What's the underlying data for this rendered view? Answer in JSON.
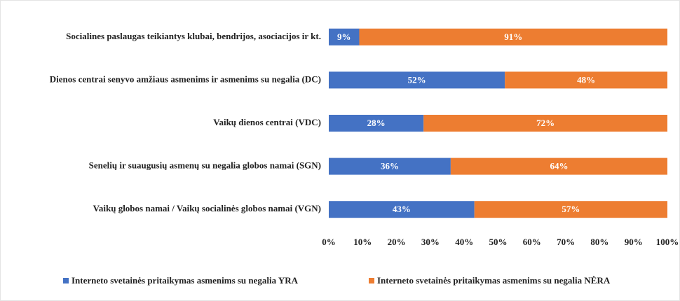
{
  "chart_data": {
    "type": "bar",
    "orientation": "horizontal",
    "stacked": true,
    "categories": [
      "Socialines paslaugas teikiantys klubai, bendrijos, asociacijos ir kt.",
      "Dienos centrai senyvo amžiaus asmenims ir asmenims su negalia (DC)",
      "Vaikų dienos centrai (VDC)",
      "Senelių ir suaugusių asmenų su negalia globos namai (SGN)",
      "Vaikų globos namai / Vaikų socialinės globos namai (VGN)"
    ],
    "series": [
      {
        "name": "Interneto svetainės pritaikymas asmenims su negalia YRA",
        "color": "#4472c4",
        "values": [
          9,
          52,
          28,
          36,
          43
        ],
        "value_labels": [
          "9%",
          "52%",
          "28%",
          "36%",
          "43%"
        ]
      },
      {
        "name": "Interneto svetainės pritaikymas asmenims su negalia NĖRA",
        "color": "#ed7d31",
        "values": [
          91,
          48,
          72,
          64,
          57
        ],
        "value_labels": [
          "91%",
          "48%",
          "72%",
          "64%",
          "57%"
        ]
      }
    ],
    "xlim": [
      0,
      100
    ],
    "xticks": [
      {
        "value": 0,
        "label": "0%"
      },
      {
        "value": 10,
        "label": "10%"
      },
      {
        "value": 20,
        "label": "20%"
      },
      {
        "value": 30,
        "label": "30%"
      },
      {
        "value": 40,
        "label": "40%"
      },
      {
        "value": 50,
        "label": "50%"
      },
      {
        "value": 60,
        "label": "60%"
      },
      {
        "value": 70,
        "label": "70%"
      },
      {
        "value": 80,
        "label": "80%"
      },
      {
        "value": 90,
        "label": "90%"
      },
      {
        "value": 100,
        "label": "100%"
      }
    ],
    "grid": false,
    "legend": "bottom"
  }
}
